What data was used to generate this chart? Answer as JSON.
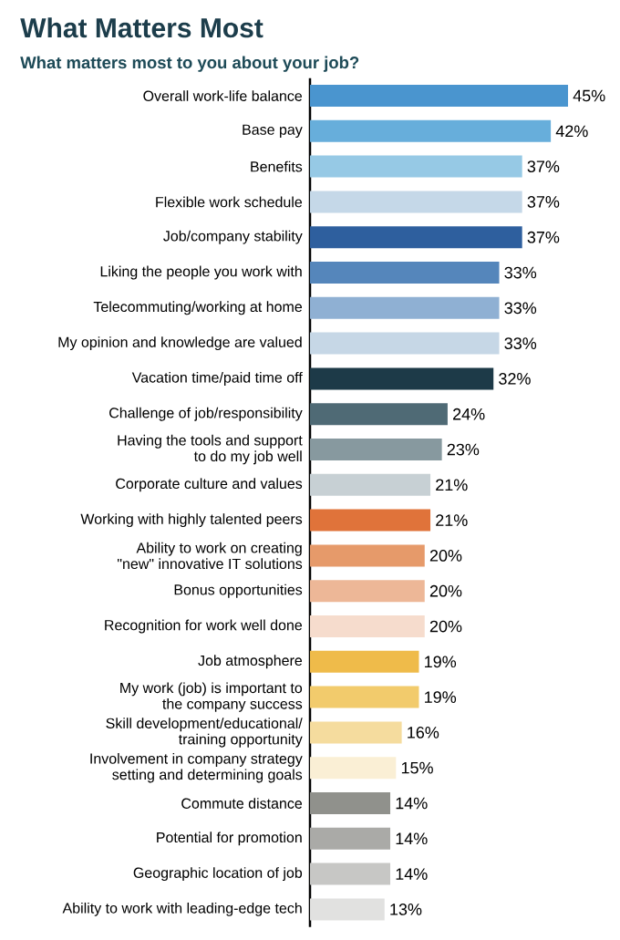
{
  "chart_data": {
    "type": "bar",
    "orientation": "horizontal",
    "title": "What Matters Most",
    "subtitle": "What matters most to you about your job?",
    "categories": [
      "Overall work-life balance",
      "Base pay",
      "Benefits",
      "Flexible work schedule",
      "Job/company stability",
      "Liking the people you work with",
      "Telecommuting/working at home",
      "My opinion and knowledge are valued",
      "Vacation time/paid time off",
      "Challenge of job/responsibility",
      "Having the tools and support\nto do my job well",
      "Corporate culture and values",
      "Working with highly talented peers",
      "Ability to work on creating\n\"new\" innovative IT solutions",
      "Bonus opportunities",
      "Recognition for work well done",
      "Job atmosphere",
      "My work (job) is important to\nthe company success",
      "Skill development/educational/\ntraining opportunity",
      "Involvement in company strategy\nsetting and determining goals",
      "Commute distance",
      "Potential for promotion",
      "Geographic location of job",
      "Ability to work with leading-edge tech"
    ],
    "values": [
      45,
      42,
      37,
      37,
      37,
      33,
      33,
      33,
      32,
      24,
      23,
      21,
      21,
      20,
      20,
      20,
      19,
      19,
      16,
      15,
      14,
      14,
      14,
      13
    ],
    "value_labels": [
      "45%",
      "42%",
      "37%",
      "37%",
      "37%",
      "33%",
      "33%",
      "33%",
      "32%",
      "24%",
      "23%",
      "21%",
      "21%",
      "20%",
      "20%",
      "20%",
      "19%",
      "19%",
      "16%",
      "15%",
      "14%",
      "14%",
      "14%",
      "13%"
    ],
    "colors": [
      "#4a95cf",
      "#67aedb",
      "#96c9e5",
      "#c5d8e8",
      "#2e5f9e",
      "#5586bb",
      "#8fb0d3",
      "#c6d7e6",
      "#1d3a48",
      "#4f6a75",
      "#87999f",
      "#c7d0d4",
      "#e0733a",
      "#e69a6a",
      "#edb797",
      "#f6dccd",
      "#efbb4a",
      "#f2cb6c",
      "#f5dc9e",
      "#faefd5",
      "#90918c",
      "#aaaaa7",
      "#c7c7c5",
      "#e1e1e0"
    ]
  }
}
